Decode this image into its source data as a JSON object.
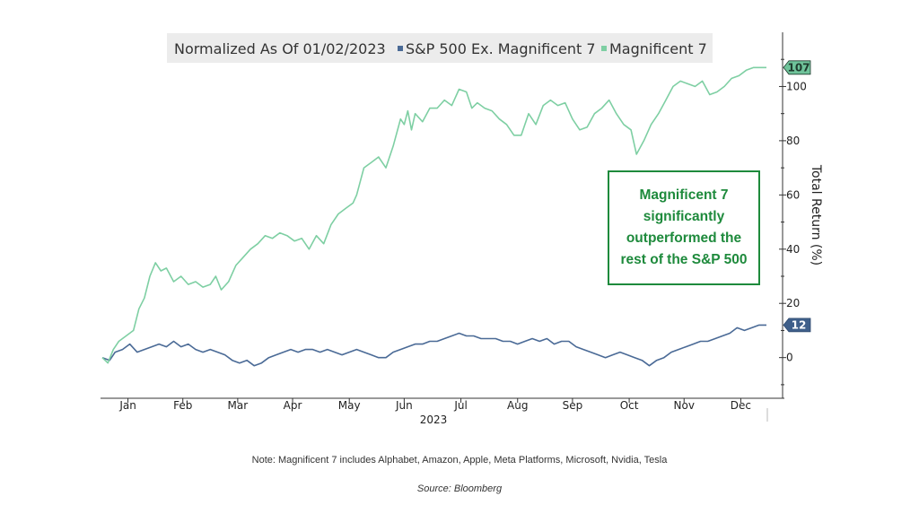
{
  "chart_data": {
    "type": "line",
    "title": "Normalized As Of 01/02/2023",
    "xlabel": "2023",
    "ylabel": "Total Return (%)",
    "ylim": [
      -15,
      120
    ],
    "yticks": [
      0,
      20,
      40,
      60,
      80,
      100
    ],
    "xmax_days": 365,
    "months": [
      {
        "label": "Jan",
        "day": 15
      },
      {
        "label": "Feb",
        "day": 45
      },
      {
        "label": "Mar",
        "day": 75
      },
      {
        "label": "Apr",
        "day": 105
      },
      {
        "label": "May",
        "day": 136
      },
      {
        "label": "Jun",
        "day": 166
      },
      {
        "label": "Jul",
        "day": 197
      },
      {
        "label": "Aug",
        "day": 228
      },
      {
        "label": "Sep",
        "day": 258
      },
      {
        "label": "Oct",
        "day": 289
      },
      {
        "label": "Nov",
        "day": 319
      },
      {
        "label": "Dec",
        "day": 350
      }
    ],
    "series": [
      {
        "name": "S&P 500 Ex. Magnificent 7",
        "color": "#4a6a96",
        "badge": "12",
        "points": [
          [
            1,
            0
          ],
          [
            5,
            -1
          ],
          [
            8,
            2
          ],
          [
            12,
            3
          ],
          [
            16,
            5
          ],
          [
            20,
            2
          ],
          [
            24,
            3
          ],
          [
            28,
            4
          ],
          [
            32,
            5
          ],
          [
            36,
            4
          ],
          [
            40,
            6
          ],
          [
            44,
            4
          ],
          [
            48,
            5
          ],
          [
            52,
            3
          ],
          [
            56,
            2
          ],
          [
            60,
            3
          ],
          [
            64,
            2
          ],
          [
            68,
            1
          ],
          [
            72,
            -1
          ],
          [
            76,
            -2
          ],
          [
            80,
            -1
          ],
          [
            84,
            -3
          ],
          [
            88,
            -2
          ],
          [
            92,
            0
          ],
          [
            96,
            1
          ],
          [
            100,
            2
          ],
          [
            104,
            3
          ],
          [
            108,
            2
          ],
          [
            112,
            3
          ],
          [
            116,
            3
          ],
          [
            120,
            2
          ],
          [
            124,
            3
          ],
          [
            128,
            2
          ],
          [
            132,
            1
          ],
          [
            136,
            2
          ],
          [
            140,
            3
          ],
          [
            144,
            2
          ],
          [
            148,
            1
          ],
          [
            152,
            0
          ],
          [
            156,
            0
          ],
          [
            160,
            2
          ],
          [
            164,
            3
          ],
          [
            168,
            4
          ],
          [
            172,
            5
          ],
          [
            176,
            5
          ],
          [
            180,
            6
          ],
          [
            184,
            6
          ],
          [
            188,
            7
          ],
          [
            192,
            8
          ],
          [
            196,
            9
          ],
          [
            200,
            8
          ],
          [
            204,
            8
          ],
          [
            208,
            7
          ],
          [
            212,
            7
          ],
          [
            216,
            7
          ],
          [
            220,
            6
          ],
          [
            224,
            6
          ],
          [
            228,
            5
          ],
          [
            232,
            6
          ],
          [
            236,
            7
          ],
          [
            240,
            6
          ],
          [
            244,
            7
          ],
          [
            248,
            5
          ],
          [
            252,
            6
          ],
          [
            256,
            6
          ],
          [
            260,
            4
          ],
          [
            264,
            3
          ],
          [
            268,
            2
          ],
          [
            272,
            1
          ],
          [
            276,
            0
          ],
          [
            280,
            1
          ],
          [
            284,
            2
          ],
          [
            288,
            1
          ],
          [
            292,
            0
          ],
          [
            296,
            -1
          ],
          [
            300,
            -3
          ],
          [
            304,
            -1
          ],
          [
            308,
            0
          ],
          [
            312,
            2
          ],
          [
            316,
            3
          ],
          [
            320,
            4
          ],
          [
            324,
            5
          ],
          [
            328,
            6
          ],
          [
            332,
            6
          ],
          [
            336,
            7
          ],
          [
            340,
            8
          ],
          [
            344,
            9
          ],
          [
            348,
            11
          ],
          [
            352,
            10
          ],
          [
            356,
            11
          ],
          [
            360,
            12
          ],
          [
            364,
            12
          ]
        ]
      },
      {
        "name": "Magnificent 7",
        "color": "#7ecfa3",
        "badge": "107",
        "points": [
          [
            1,
            0
          ],
          [
            4,
            -2
          ],
          [
            7,
            3
          ],
          [
            10,
            6
          ],
          [
            14,
            8
          ],
          [
            18,
            10
          ],
          [
            21,
            18
          ],
          [
            24,
            22
          ],
          [
            27,
            30
          ],
          [
            30,
            35
          ],
          [
            33,
            32
          ],
          [
            36,
            33
          ],
          [
            40,
            28
          ],
          [
            44,
            30
          ],
          [
            48,
            27
          ],
          [
            52,
            28
          ],
          [
            56,
            26
          ],
          [
            60,
            27
          ],
          [
            63,
            30
          ],
          [
            66,
            25
          ],
          [
            70,
            28
          ],
          [
            74,
            34
          ],
          [
            78,
            37
          ],
          [
            82,
            40
          ],
          [
            86,
            42
          ],
          [
            90,
            45
          ],
          [
            94,
            44
          ],
          [
            98,
            46
          ],
          [
            102,
            45
          ],
          [
            106,
            43
          ],
          [
            110,
            44
          ],
          [
            114,
            40
          ],
          [
            118,
            45
          ],
          [
            122,
            42
          ],
          [
            126,
            49
          ],
          [
            130,
            53
          ],
          [
            134,
            55
          ],
          [
            138,
            57
          ],
          [
            140,
            60
          ],
          [
            144,
            70
          ],
          [
            148,
            72
          ],
          [
            152,
            74
          ],
          [
            156,
            70
          ],
          [
            160,
            78
          ],
          [
            164,
            88
          ],
          [
            166,
            86
          ],
          [
            168,
            91
          ],
          [
            170,
            84
          ],
          [
            172,
            90
          ],
          [
            176,
            87
          ],
          [
            180,
            92
          ],
          [
            184,
            92
          ],
          [
            188,
            95
          ],
          [
            192,
            93
          ],
          [
            196,
            99
          ],
          [
            200,
            98
          ],
          [
            203,
            92
          ],
          [
            206,
            94
          ],
          [
            210,
            92
          ],
          [
            214,
            91
          ],
          [
            218,
            88
          ],
          [
            222,
            86
          ],
          [
            226,
            82
          ],
          [
            230,
            82
          ],
          [
            234,
            90
          ],
          [
            238,
            86
          ],
          [
            242,
            93
          ],
          [
            246,
            95
          ],
          [
            250,
            93
          ],
          [
            254,
            94
          ],
          [
            258,
            88
          ],
          [
            262,
            84
          ],
          [
            266,
            85
          ],
          [
            270,
            90
          ],
          [
            274,
            92
          ],
          [
            278,
            95
          ],
          [
            282,
            90
          ],
          [
            286,
            86
          ],
          [
            290,
            84
          ],
          [
            293,
            75
          ],
          [
            297,
            80
          ],
          [
            301,
            86
          ],
          [
            305,
            90
          ],
          [
            309,
            95
          ],
          [
            313,
            100
          ],
          [
            317,
            102
          ],
          [
            321,
            101
          ],
          [
            325,
            100
          ],
          [
            329,
            102
          ],
          [
            333,
            97
          ],
          [
            337,
            98
          ],
          [
            341,
            100
          ],
          [
            345,
            103
          ],
          [
            349,
            104
          ],
          [
            353,
            106
          ],
          [
            357,
            107
          ],
          [
            361,
            107
          ],
          [
            364,
            107
          ]
        ]
      }
    ],
    "annotation": "Magnificent 7 significantly outperformed the rest of the S&P 500"
  },
  "footer": {
    "note": "Note: Magnificent 7 includes Alphabet, Amazon, Apple, Meta Platforms, Microsoft, Nvidia, Tesla",
    "source": "Source: Bloomberg"
  }
}
